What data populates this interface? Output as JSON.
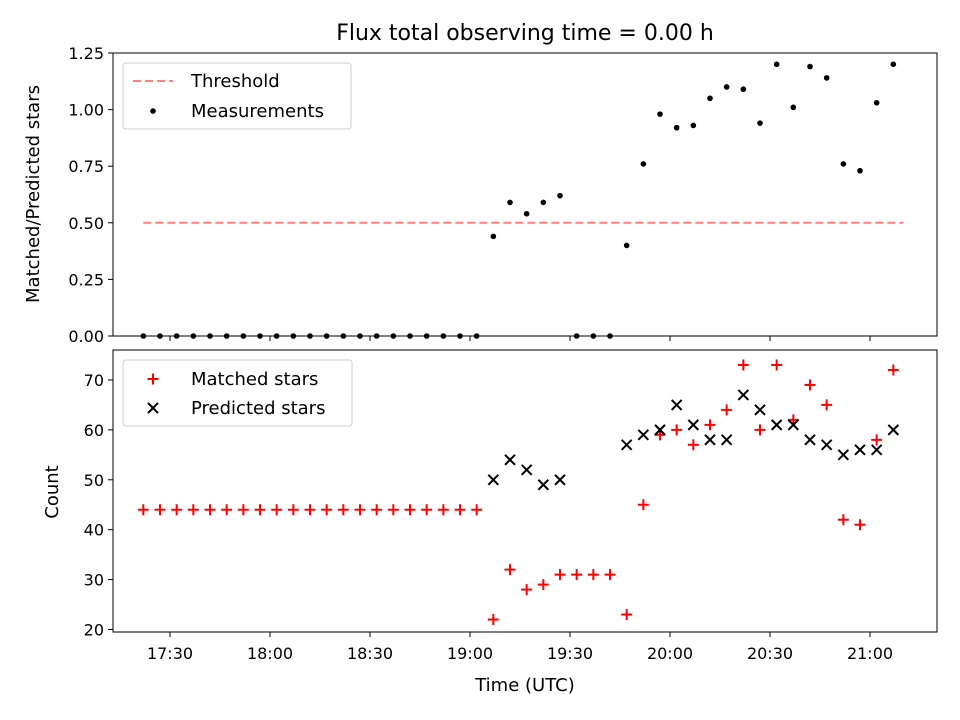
{
  "chart_data": [
    {
      "type": "scatter",
      "title": "Flux total observing time = 0.00 h",
      "xlabel": "",
      "ylabel": "Matched/Predicted stars",
      "ylim": [
        0,
        1.25
      ],
      "yticks": [
        "0.00",
        "0.25",
        "0.50",
        "0.75",
        "1.00",
        "1.25"
      ],
      "legend_position": "top-left",
      "series": [
        {
          "name": "Threshold",
          "kind": "dashed-line",
          "color": "#ff7f7f",
          "x": [
            "17:22",
            "21:10"
          ],
          "values": [
            0.5,
            0.5
          ]
        },
        {
          "name": "Measurements",
          "kind": "dot",
          "color": "#000000",
          "x": [
            "17:22",
            "17:27",
            "17:32",
            "17:37",
            "17:42",
            "17:47",
            "17:52",
            "17:57",
            "18:02",
            "18:07",
            "18:12",
            "18:17",
            "18:22",
            "18:27",
            "18:32",
            "18:37",
            "18:42",
            "18:47",
            "18:52",
            "18:57",
            "19:02",
            "19:07",
            "19:12",
            "19:17",
            "19:22",
            "19:27",
            "19:32",
            "19:37",
            "19:42",
            "19:47",
            "19:52",
            "19:57",
            "20:02",
            "20:07",
            "20:12",
            "20:17",
            "20:22",
            "20:27",
            "20:32",
            "20:37",
            "20:42",
            "20:47",
            "20:52",
            "20:57",
            "21:02",
            "21:07"
          ],
          "values": [
            0,
            0,
            0,
            0,
            0,
            0,
            0,
            0,
            0,
            0,
            0,
            0,
            0,
            0,
            0,
            0,
            0,
            0,
            0,
            0,
            0,
            0.44,
            0.59,
            0.54,
            0.59,
            0.62,
            0,
            0,
            0,
            0.4,
            0.76,
            0.98,
            0.92,
            0.93,
            1.05,
            1.1,
            1.09,
            0.94,
            1.2,
            1.01,
            1.19,
            1.14,
            0.76,
            0.73,
            1.03,
            1.2
          ]
        }
      ]
    },
    {
      "type": "scatter",
      "title": "",
      "xlabel": "Time (UTC)",
      "ylabel": "Count",
      "ylim": [
        19.5,
        76
      ],
      "yticks": [
        "20",
        "30",
        "40",
        "50",
        "60",
        "70"
      ],
      "xticks": [
        "17:30",
        "18:00",
        "18:30",
        "19:00",
        "19:30",
        "20:00",
        "20:30",
        "21:00"
      ],
      "legend_position": "top-left",
      "series": [
        {
          "name": "Matched stars",
          "marker": "plus",
          "color": "#ff0000",
          "x": [
            "17:22",
            "17:27",
            "17:32",
            "17:37",
            "17:42",
            "17:47",
            "17:52",
            "17:57",
            "18:02",
            "18:07",
            "18:12",
            "18:17",
            "18:22",
            "18:27",
            "18:32",
            "18:37",
            "18:42",
            "18:47",
            "18:52",
            "18:57",
            "19:02",
            "19:07",
            "19:12",
            "19:17",
            "19:22",
            "19:27",
            "19:32",
            "19:37",
            "19:42",
            "19:47",
            "19:52",
            "19:57",
            "20:02",
            "20:07",
            "20:12",
            "20:17",
            "20:22",
            "20:27",
            "20:32",
            "20:37",
            "20:42",
            "20:47",
            "20:52",
            "20:57",
            "21:02",
            "21:07"
          ],
          "values": [
            44,
            44,
            44,
            44,
            44,
            44,
            44,
            44,
            44,
            44,
            44,
            44,
            44,
            44,
            44,
            44,
            44,
            44,
            44,
            44,
            44,
            22,
            32,
            28,
            29,
            31,
            31,
            31,
            31,
            23,
            45,
            59,
            60,
            57,
            61,
            64,
            73,
            60,
            73,
            62,
            69,
            65,
            42,
            41,
            58,
            72
          ]
        },
        {
          "name": "Predicted stars",
          "marker": "x",
          "color": "#000000",
          "x": [
            "19:07",
            "19:12",
            "19:17",
            "19:22",
            "19:27",
            "19:47",
            "19:52",
            "19:57",
            "20:02",
            "20:07",
            "20:12",
            "20:17",
            "20:22",
            "20:27",
            "20:32",
            "20:37",
            "20:42",
            "20:47",
            "20:52",
            "20:57",
            "21:02",
            "21:07"
          ],
          "values": [
            50,
            54,
            52,
            49,
            50,
            57,
            59,
            60,
            65,
            61,
            58,
            58,
            67,
            64,
            61,
            61,
            58,
            57,
            55,
            56,
            56,
            60
          ]
        }
      ]
    }
  ]
}
